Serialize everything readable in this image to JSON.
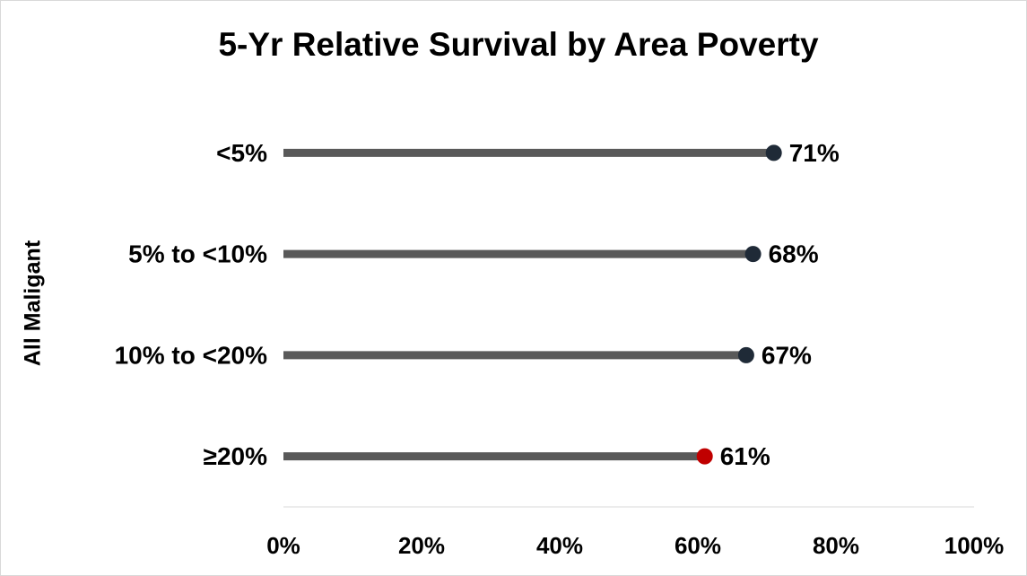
{
  "chart_data": {
    "type": "lollipop",
    "title": "5-Yr Relative Survival by Area Poverty",
    "y_label": "All Maligant",
    "categories": [
      "<5%",
      "5% to <10%",
      "10% to <20%",
      "≥20%"
    ],
    "values": [
      71,
      68,
      67,
      61
    ],
    "value_labels": [
      "71%",
      "68%",
      "67%",
      "61%"
    ],
    "colors": [
      "#1f2a37",
      "#1f2a37",
      "#1f2a37",
      "#c00000"
    ],
    "line_color": "#595959",
    "xlim": [
      0,
      100
    ],
    "xticks": [
      {
        "value": 0,
        "label": "0%"
      },
      {
        "value": 20,
        "label": "20%"
      },
      {
        "value": 40,
        "label": "40%"
      },
      {
        "value": 60,
        "label": "60%"
      },
      {
        "value": 80,
        "label": "80%"
      },
      {
        "value": 100,
        "label": "100%"
      }
    ]
  }
}
